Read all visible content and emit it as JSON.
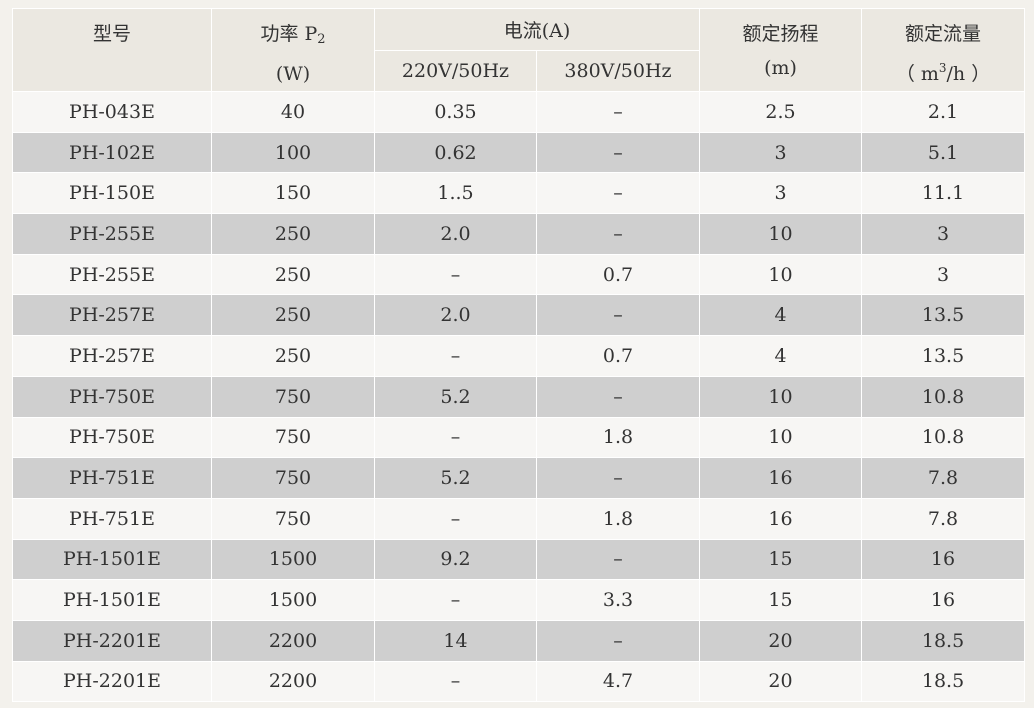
{
  "header": {
    "model": "型号",
    "power_label": "功率 P",
    "power_sub": "2",
    "power_unit": "(W)",
    "current": "电流(A)",
    "v220": "220V/50Hz",
    "v380": "380V/50Hz",
    "head": "额定扬程",
    "head_unit": "(m)",
    "flow": "额定流量",
    "flow_unit_pre": "（ m",
    "flow_unit_sup": "3",
    "flow_unit_post": "/h ）"
  },
  "rows": [
    [
      "PH-043E",
      "40",
      "0.35",
      "–",
      "2.5",
      "2.1"
    ],
    [
      "PH-102E",
      "100",
      "0.62",
      "–",
      "3",
      "5.1"
    ],
    [
      "PH-150E",
      "150",
      "1..5",
      "–",
      "3",
      "11.1"
    ],
    [
      "PH-255E",
      "250",
      "2.0",
      "–",
      "10",
      "3"
    ],
    [
      "PH-255E",
      "250",
      "–",
      "0.7",
      "10",
      "3"
    ],
    [
      "PH-257E",
      "250",
      "2.0",
      "–",
      "4",
      "13.5"
    ],
    [
      "PH-257E",
      "250",
      "–",
      "0.7",
      "4",
      "13.5"
    ],
    [
      "PH-750E",
      "750",
      "5.2",
      "–",
      "10",
      "10.8"
    ],
    [
      "PH-750E",
      "750",
      "–",
      "1.8",
      "10",
      "10.8"
    ],
    [
      "PH-751E",
      "750",
      "5.2",
      "–",
      "16",
      "7.8"
    ],
    [
      "PH-751E",
      "750",
      "–",
      "1.8",
      "16",
      "7.8"
    ],
    [
      "PH-1501E",
      "1500",
      "9.2",
      "–",
      "15",
      "16"
    ],
    [
      "PH-1501E",
      "1500",
      "–",
      "3.3",
      "15",
      "16"
    ],
    [
      "PH-2201E",
      "2200",
      "14",
      "–",
      "20",
      "18.5"
    ],
    [
      "PH-2201E",
      "2200",
      "–",
      "4.7",
      "20",
      "18.5"
    ]
  ]
}
